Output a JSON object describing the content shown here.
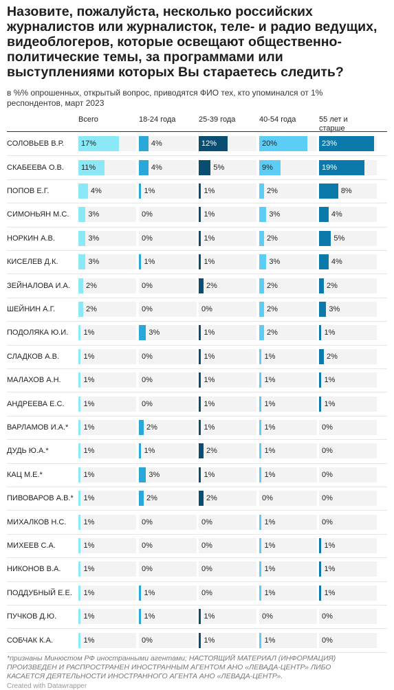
{
  "header": {
    "title": "Назовите, пожалуйста, несколько российских журналистов или журналисток, теле- и радио ведущих, видеоблогеров, которые освещают общественно-политические темы, за программами или выступлениями которых Вы стараетесь следить?",
    "subtitle": "в %% опрошенных, открытый вопрос, приводятся ФИО тех, кто упоминался от 1% респондентов, март 2023"
  },
  "table": {
    "columns": [
      {
        "name": "Всего",
        "color": "#8be8f7"
      },
      {
        "name": "18-24 года",
        "color": "#2aa7d9"
      },
      {
        "name": "25-39 года",
        "color": "#0a4d72"
      },
      {
        "name": "40-54 года",
        "color": "#5ccdf4"
      },
      {
        "name": "55 лет и старше",
        "color": "#0b79a9"
      }
    ],
    "rows": [
      {
        "name": "СОЛОВЬЕВ В.Р.",
        "values": [
          17,
          4,
          12,
          20,
          23
        ],
        "value_labels": [
          "17%",
          "4%",
          "12%",
          "20%",
          "23%"
        ]
      },
      {
        "name": "СКАБЕЕВА О.В.",
        "values": [
          11,
          4,
          5,
          9,
          19
        ],
        "value_labels": [
          "11%",
          "4%",
          "5%",
          "9%",
          "19%"
        ]
      },
      {
        "name": "ПОПОВ Е.Г.",
        "values": [
          4,
          1,
          1,
          2,
          8
        ],
        "value_labels": [
          "4%",
          "1%",
          "1%",
          "2%",
          "8%"
        ]
      },
      {
        "name": "СИМОНЬЯН М.С.",
        "values": [
          3,
          0,
          1,
          3,
          4
        ],
        "value_labels": [
          "3%",
          "0%",
          "1%",
          "3%",
          "4%"
        ]
      },
      {
        "name": "НОРКИН А.В.",
        "values": [
          3,
          0,
          1,
          2,
          5
        ],
        "value_labels": [
          "3%",
          "0%",
          "1%",
          "2%",
          "5%"
        ]
      },
      {
        "name": "КИСЕЛЕВ Д.К.",
        "values": [
          3,
          1,
          1,
          3,
          4
        ],
        "value_labels": [
          "3%",
          "1%",
          "1%",
          "3%",
          "4%"
        ]
      },
      {
        "name": "ЗЕЙНАЛОВА И.А.",
        "values": [
          2,
          0,
          2,
          2,
          2
        ],
        "value_labels": [
          "2%",
          "0%",
          "2%",
          "2%",
          "2%"
        ]
      },
      {
        "name": "ШЕЙНИН А.Г.",
        "values": [
          2,
          0,
          0,
          2,
          3
        ],
        "value_labels": [
          "2%",
          "0%",
          "0%",
          "2%",
          "3%"
        ]
      },
      {
        "name": "ПОДОЛЯКА Ю.И.",
        "values": [
          1,
          3,
          1,
          2,
          1
        ],
        "value_labels": [
          "1%",
          "3%",
          "1%",
          "2%",
          "1%"
        ]
      },
      {
        "name": "СЛАДКОВ А.В.",
        "values": [
          1,
          0,
          1,
          1,
          2
        ],
        "value_labels": [
          "1%",
          "0%",
          "1%",
          "1%",
          "2%"
        ]
      },
      {
        "name": "МАЛАХОВ А.Н.",
        "values": [
          1,
          0,
          1,
          1,
          1
        ],
        "value_labels": [
          "1%",
          "0%",
          "1%",
          "1%",
          "1%"
        ]
      },
      {
        "name": "АНДРЕЕВА Е.С.",
        "values": [
          1,
          0,
          1,
          1,
          1
        ],
        "value_labels": [
          "1%",
          "0%",
          "1%",
          "1%",
          "1%"
        ]
      },
      {
        "name": "ВАРЛАМОВ И.А.*",
        "values": [
          1,
          2,
          1,
          1,
          0
        ],
        "value_labels": [
          "1%",
          "2%",
          "1%",
          "1%",
          "0%"
        ]
      },
      {
        "name": "ДУДЬ Ю.А.*",
        "values": [
          1,
          1,
          2,
          1,
          0
        ],
        "value_labels": [
          "1%",
          "1%",
          "2%",
          "1%",
          "0%"
        ]
      },
      {
        "name": "КАЦ М.Е.*",
        "values": [
          1,
          3,
          1,
          1,
          0
        ],
        "value_labels": [
          "1%",
          "3%",
          "1%",
          "1%",
          "0%"
        ]
      },
      {
        "name": "ПИВОВАРОВ А.В.*",
        "values": [
          1,
          2,
          2,
          0,
          0
        ],
        "value_labels": [
          "1%",
          "2%",
          "2%",
          "0%",
          "0%"
        ]
      },
      {
        "name": "МИХАЛКОВ Н.С.",
        "values": [
          1,
          0,
          0,
          1,
          0
        ],
        "value_labels": [
          "1%",
          "0%",
          "0%",
          "1%",
          "0%"
        ]
      },
      {
        "name": "МИХЕЕВ С.А.",
        "values": [
          1,
          0,
          0,
          1,
          1
        ],
        "value_labels": [
          "1%",
          "0%",
          "0%",
          "1%",
          "1%"
        ]
      },
      {
        "name": "НИКОНОВ В.А.",
        "values": [
          1,
          0,
          0,
          1,
          1
        ],
        "value_labels": [
          "1%",
          "0%",
          "0%",
          "1%",
          "1%"
        ]
      },
      {
        "name": "ПОДДУБНЫЙ Е.Е.",
        "values": [
          1,
          1,
          0,
          1,
          1
        ],
        "value_labels": [
          "1%",
          "1%",
          "0%",
          "1%",
          "1%"
        ]
      },
      {
        "name": "ПУЧКОВ Д.Ю.",
        "values": [
          1,
          1,
          1,
          0,
          0
        ],
        "value_labels": [
          "1%",
          "1%",
          "1%",
          "0%",
          "0%"
        ]
      },
      {
        "name": "СОБЧАК К.А.",
        "values": [
          1,
          0,
          1,
          1,
          0
        ],
        "value_labels": [
          "1%",
          "0%",
          "1%",
          "1%",
          "0%"
        ]
      }
    ]
  },
  "footer": {
    "note": "*признаны Минюстом РФ иностранными агентами; НАСТОЯЩИЙ МАТЕРИАЛ (ИНФОРМАЦИЯ) ПРОИЗВЕДЕН И РАСПРОСТРАНЕН ИНОСТРАННЫМ АГЕНТОМ АНО «ЛЕВАДА-ЦЕНТР» ЛИБО КАСАЕТСЯ ДЕЯТЕЛЬНОСТИ ИНОСТРАННОГО АГЕНТА АНО «ЛЕВАДА-ЦЕНТР».",
    "credit": "Created with Datawrapper"
  }
}
